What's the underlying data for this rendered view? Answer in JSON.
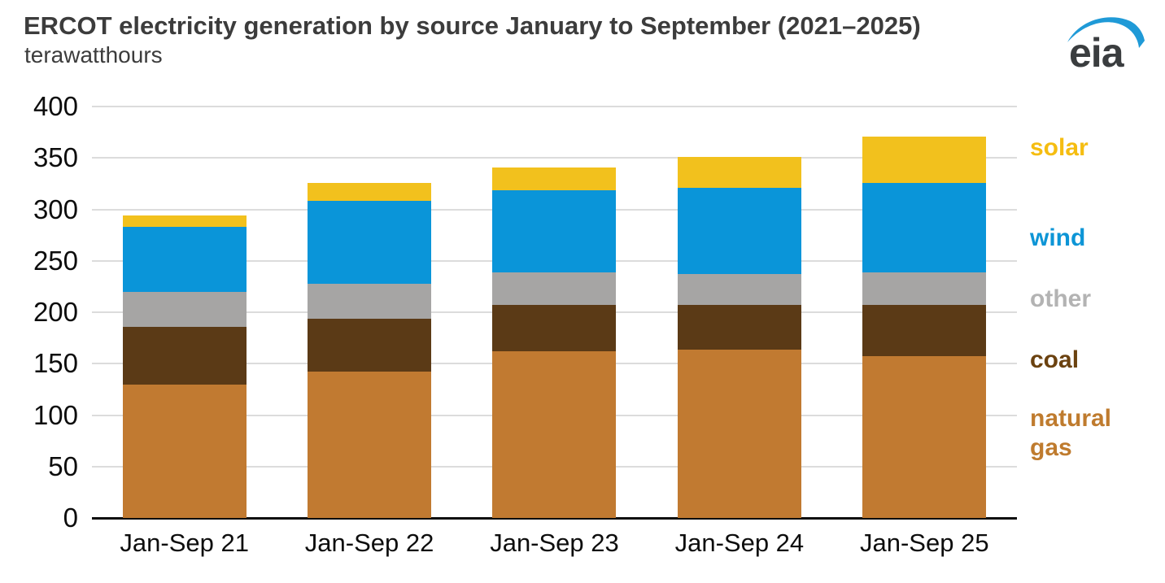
{
  "header": {
    "title": "ERCOT electricity generation by source January to September (2021–2025)",
    "subtitle": "terawatthours",
    "logo_text": "eia"
  },
  "colors": {
    "title_text": "#3c3c3c",
    "axis_text": "#0d0d0d",
    "gridline": "#dcdcdc",
    "axis_line": "#0d0d0d",
    "logo_blue": "#1f9ad7",
    "logo_gray": "#3a3d3f",
    "natural_gas": "#c17a31",
    "coal": "#5b3a16",
    "other": "#a6a5a4",
    "wind": "#0a95d9",
    "solar": "#f2c11d"
  },
  "chart_data": {
    "type": "bar",
    "stacked": true,
    "title": "ERCOT electricity generation by source January to September (2021–2025)",
    "ylabel": "terawatthours",
    "xlabel": "",
    "ylim": [
      0,
      400
    ],
    "ytick_interval": 50,
    "yticks": [
      400,
      350,
      300,
      250,
      200,
      150,
      100,
      50,
      0
    ],
    "grid": true,
    "legend_position": "right",
    "categories": [
      "Jan-Sep 21",
      "Jan-Sep 22",
      "Jan-Sep 23",
      "Jan-Sep 24",
      "Jan-Sep 25"
    ],
    "series": [
      {
        "name": "natural gas",
        "color": "#c17a31",
        "legend_color": "#bf7b2e",
        "values": [
          130,
          142,
          162,
          164,
          157
        ]
      },
      {
        "name": "coal",
        "color": "#5b3a16",
        "legend_color": "#6b4210",
        "values": [
          56,
          52,
          45,
          43,
          50
        ]
      },
      {
        "name": "other",
        "color": "#a6a5a4",
        "legend_color": "#b3b3b3",
        "values": [
          34,
          34,
          32,
          30,
          32
        ]
      },
      {
        "name": "wind",
        "color": "#0a95d9",
        "legend_color": "#0d95d6",
        "values": [
          63,
          80,
          80,
          84,
          87
        ]
      },
      {
        "name": "solar",
        "color": "#f2c11d",
        "legend_color": "#f5bd11",
        "values": [
          11,
          18,
          22,
          30,
          45
        ]
      }
    ],
    "stack_totals": [
      294,
      326,
      341,
      351,
      371
    ]
  },
  "legend": {
    "order_top_to_bottom": [
      "solar",
      "wind",
      "other",
      "coal",
      "natural gas"
    ]
  }
}
